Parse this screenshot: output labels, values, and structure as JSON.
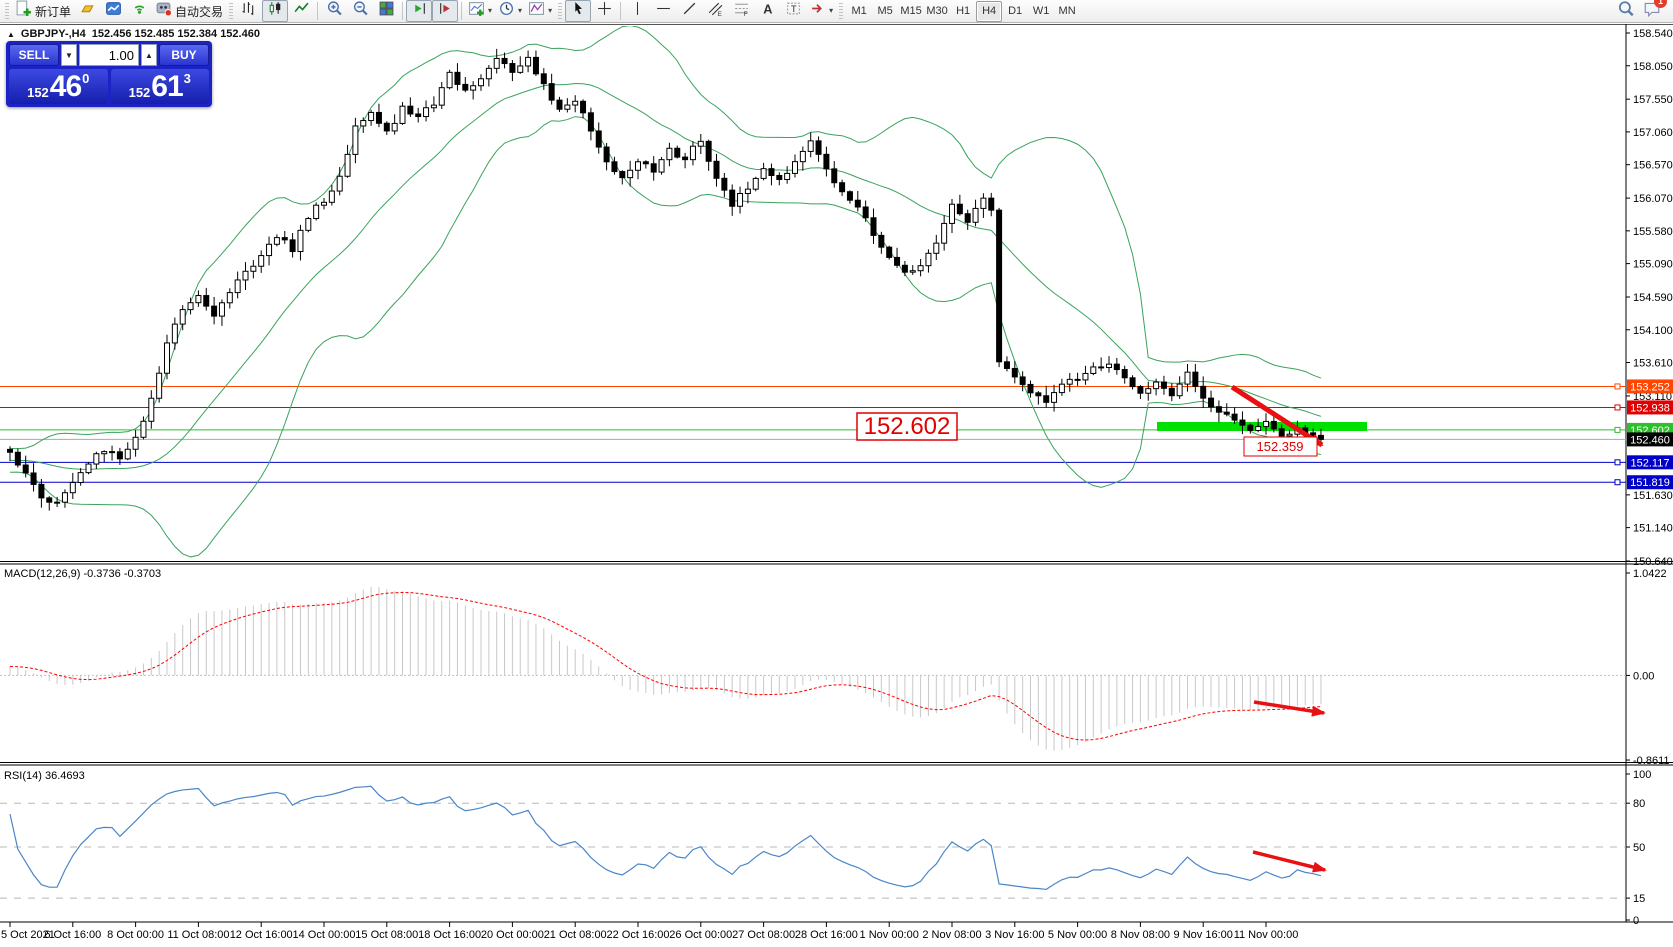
{
  "toolbar": {
    "new_order_label": "新订单",
    "autotrade_label": "自动交易",
    "badge_count": "1",
    "timeframes": [
      {
        "label": "M1"
      },
      {
        "label": "M5"
      },
      {
        "label": "M15"
      },
      {
        "label": "M30"
      },
      {
        "label": "H1"
      },
      {
        "label": "H4",
        "active": true
      },
      {
        "label": "D1"
      },
      {
        "label": "W1"
      },
      {
        "label": "MN"
      }
    ],
    "icons": {
      "caret_down": "▾",
      "spin_down": "▼",
      "spin_up": "▲",
      "collapse": "▲"
    }
  },
  "chart_header": {
    "collapse_icon": "▲",
    "symbol": "GBPJPY-,H4",
    "quotes": "152.456 152.485 152.384 152.460"
  },
  "trade_panel": {
    "sell_label": "SELL",
    "buy_label": "BUY",
    "volume": "1.00",
    "sell_price": {
      "small": "152",
      "big": "46",
      "sup": "0"
    },
    "buy_price": {
      "small": "152",
      "big": "61",
      "sup": "3"
    }
  },
  "chart_data": {
    "type": "candlestick",
    "symbol": "GBPJPY-",
    "timeframe": "H4",
    "price_axis_ticks": [
      "158.540",
      "158.050",
      "157.550",
      "157.060",
      "156.570",
      "156.070",
      "155.580",
      "155.090",
      "154.590",
      "154.100",
      "153.610",
      "153.110",
      "151.630",
      "151.140",
      "150.640"
    ],
    "time_axis_labels": [
      "5 Oct 2021",
      "6 Oct 16:00",
      "8 Oct 00:00",
      "11 Oct 08:00",
      "12 Oct 16:00",
      "14 Oct 00:00",
      "15 Oct 08:00",
      "18 Oct 16:00",
      "20 Oct 00:00",
      "21 Oct 08:00",
      "22 Oct 16:00",
      "26 Oct 00:00",
      "27 Oct 08:00",
      "28 Oct 16:00",
      "1 Nov 00:00",
      "2 Nov 08:00",
      "3 Nov 16:00",
      "5 Nov 00:00",
      "8 Nov 08:00",
      "9 Nov 16:00",
      "11 Nov 00:00"
    ],
    "levels": [
      {
        "label": "153.252",
        "price": 153.252,
        "color": "#FF4500"
      },
      {
        "label": "152.938",
        "price": 152.938,
        "color": "#E00000"
      },
      {
        "label": "152.602",
        "price": 152.602,
        "color": "#2EBE2E"
      },
      {
        "label": "152.460",
        "price": 152.46,
        "color": "#000000",
        "current": true
      },
      {
        "label": "152.117",
        "price": 152.117,
        "color": "#0000C8"
      },
      {
        "label": "151.819",
        "price": 151.819,
        "color": "#0000C8"
      }
    ],
    "close_anchors": [
      [
        0,
        152.3
      ],
      [
        2,
        151.95
      ],
      [
        4,
        151.62
      ],
      [
        6,
        151.5
      ],
      [
        8,
        151.85
      ],
      [
        10,
        152.1
      ],
      [
        12,
        152.32
      ],
      [
        14,
        152.18
      ],
      [
        16,
        152.5
      ],
      [
        18,
        153.05
      ],
      [
        20,
        153.95
      ],
      [
        22,
        154.4
      ],
      [
        24,
        154.62
      ],
      [
        26,
        154.35
      ],
      [
        28,
        154.65
      ],
      [
        30,
        154.95
      ],
      [
        32,
        155.2
      ],
      [
        34,
        155.5
      ],
      [
        36,
        155.3
      ],
      [
        38,
        155.8
      ],
      [
        40,
        156.05
      ],
      [
        42,
        156.35
      ],
      [
        44,
        157.15
      ],
      [
        46,
        157.35
      ],
      [
        48,
        157.05
      ],
      [
        50,
        157.4
      ],
      [
        52,
        157.25
      ],
      [
        54,
        157.5
      ],
      [
        56,
        157.95
      ],
      [
        58,
        157.65
      ],
      [
        60,
        157.9
      ],
      [
        62,
        158.15
      ],
      [
        64,
        157.95
      ],
      [
        66,
        158.2
      ],
      [
        68,
        157.75
      ],
      [
        70,
        157.4
      ],
      [
        72,
        157.55
      ],
      [
        74,
        157.1
      ],
      [
        76,
        156.6
      ],
      [
        78,
        156.35
      ],
      [
        80,
        156.65
      ],
      [
        82,
        156.5
      ],
      [
        84,
        156.8
      ],
      [
        86,
        156.65
      ],
      [
        88,
        156.95
      ],
      [
        90,
        156.35
      ],
      [
        92,
        155.95
      ],
      [
        94,
        156.25
      ],
      [
        96,
        156.55
      ],
      [
        98,
        156.35
      ],
      [
        100,
        156.6
      ],
      [
        102,
        156.9
      ],
      [
        104,
        156.55
      ],
      [
        106,
        156.15
      ],
      [
        108,
        155.95
      ],
      [
        110,
        155.55
      ],
      [
        112,
        155.2
      ],
      [
        114,
        154.95
      ],
      [
        116,
        155.1
      ],
      [
        118,
        155.4
      ],
      [
        120,
        155.95
      ],
      [
        122,
        155.7
      ],
      [
        124,
        156.1
      ],
      [
        125,
        155.85
      ],
      [
        126,
        153.6
      ],
      [
        128,
        153.4
      ],
      [
        130,
        153.2
      ],
      [
        132,
        153.05
      ],
      [
        134,
        153.3
      ],
      [
        136,
        153.35
      ],
      [
        138,
        153.5
      ],
      [
        140,
        153.6
      ],
      [
        142,
        153.35
      ],
      [
        144,
        153.2
      ],
      [
        146,
        153.3
      ],
      [
        148,
        153.15
      ],
      [
        150,
        153.45
      ],
      [
        152,
        153.05
      ],
      [
        154,
        152.85
      ],
      [
        156,
        152.75
      ],
      [
        158,
        152.6
      ],
      [
        160,
        152.7
      ],
      [
        162,
        152.5
      ],
      [
        164,
        152.65
      ],
      [
        166,
        152.52
      ],
      [
        167,
        152.46
      ]
    ],
    "bars_total": 168,
    "last_close": 152.46,
    "indicators": {
      "bollinger": {
        "name": "Bollinger Bands",
        "period": 20,
        "deviation": 2,
        "color": "#3AA35C"
      },
      "macd": {
        "label": "MACD(12,26,9) -0.3736 -0.3703",
        "values": {
          "macd": -0.3736,
          "signal": -0.3703
        },
        "axis_ticks": [
          "1.0422",
          "0.00",
          "-0.8611"
        ],
        "range": {
          "top": 1.0422,
          "bottom": -0.8611
        },
        "hist_color": "#C8C8C8",
        "signal_color": "#FF0000"
      },
      "rsi": {
        "label": "RSI(14) 36.4693",
        "value": 36.4693,
        "axis_ticks": [
          {
            "v": 100,
            "dash": false
          },
          {
            "v": 80,
            "dash": true
          },
          {
            "v": 50,
            "dash": true
          },
          {
            "v": 15,
            "dash": true
          },
          {
            "v": 0,
            "dash": false
          }
        ],
        "color": "#4A86C8"
      }
    },
    "annotations": {
      "big_price_box": {
        "text": "152.602",
        "color": "#E00000"
      },
      "small_price_box": {
        "text": "152.359",
        "color": "#E00000"
      },
      "support_zone_color": "#00E000",
      "arrow_color": "#E81010"
    },
    "colors": {
      "bull_candle": "#FFFFFF",
      "bear_candle": "#000000",
      "candle_outline": "#000000",
      "current_price_line": "#A8A8A8"
    }
  }
}
